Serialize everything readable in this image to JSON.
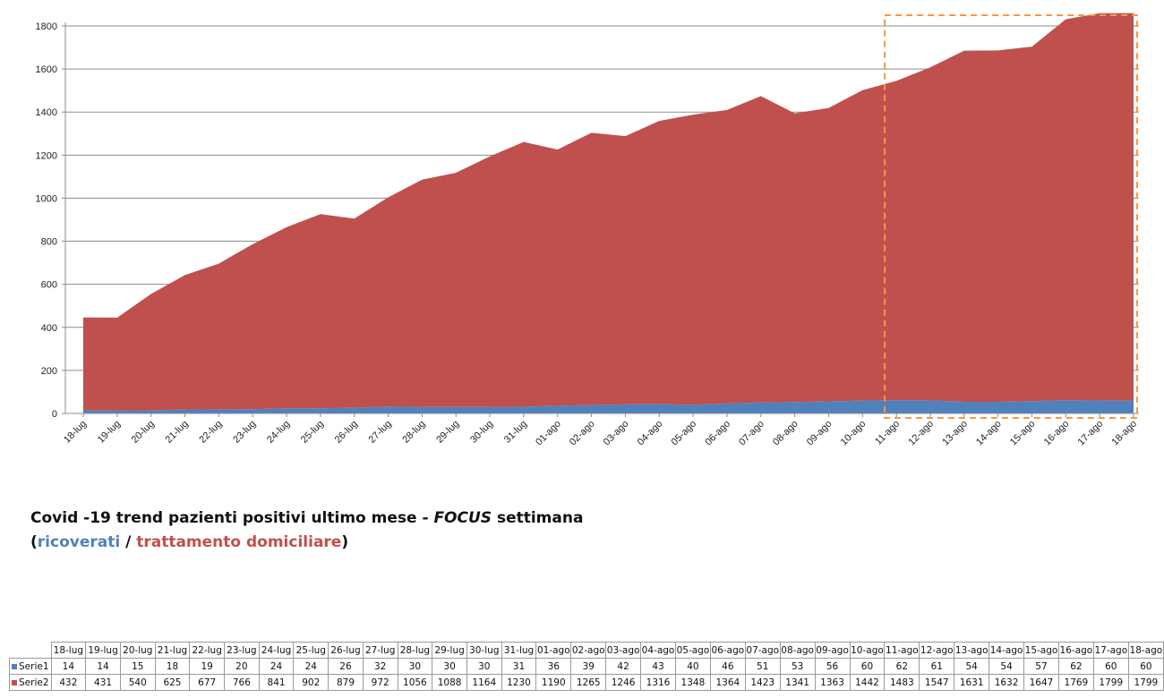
{
  "chart_data": {
    "type": "area",
    "stacked": true,
    "categories": [
      "18-lug",
      "19-lug",
      "20-lug",
      "21-lug",
      "22-lug",
      "23-lug",
      "24-lug",
      "25-lug",
      "26-lug",
      "27-lug",
      "28-lug",
      "29-lug",
      "30-lug",
      "31-lug",
      "01-ago",
      "02-ago",
      "03-ago",
      "04-ago",
      "05-ago",
      "06-ago",
      "07-ago",
      "08-ago",
      "09-ago",
      "10-ago",
      "11-ago",
      "12-ago",
      "13-ago",
      "14-ago",
      "15-ago",
      "16-ago",
      "17-ago",
      "18-ago"
    ],
    "series": [
      {
        "name": "Serie1",
        "color": "#4f81bd",
        "values": [
          14,
          14,
          15,
          18,
          19,
          20,
          24,
          24,
          26,
          32,
          30,
          30,
          30,
          31,
          36,
          39,
          42,
          43,
          40,
          46,
          51,
          53,
          56,
          60,
          62,
          61,
          54,
          54,
          57,
          62,
          60,
          60
        ]
      },
      {
        "name": "Serie2",
        "color": "#c0504d",
        "values": [
          432,
          431,
          540,
          625,
          677,
          766,
          841,
          902,
          879,
          972,
          1056,
          1088,
          1164,
          1230,
          1190,
          1265,
          1246,
          1316,
          1348,
          1364,
          1423,
          1341,
          1363,
          1442,
          1483,
          1547,
          1631,
          1632,
          1647,
          1769,
          1799,
          1799
        ]
      }
    ],
    "ylim": [
      0,
      1800
    ],
    "yticks": [
      0,
      200,
      400,
      600,
      800,
      1000,
      1200,
      1400,
      1600,
      1800
    ],
    "grid": true,
    "highlight": {
      "from": "11-ago",
      "to": "18-ago",
      "color": "#f79646",
      "style": "dashed"
    },
    "title": "",
    "xlabel": "",
    "ylabel": ""
  },
  "caption": {
    "line1_a": "Covid -19 trend pazienti positivi ultimo mese - ",
    "line1_focus": "FOCUS",
    "line1_b": " settimana",
    "paren_open": "(",
    "series1_label": "ricoverati",
    "separator": " / ",
    "series2_label": "trattamento domiciliare",
    "paren_close": ")"
  },
  "table": {
    "columns": [
      "18-lug",
      "19-lug",
      "20-lug",
      "21-lug",
      "22-lug",
      "23-lug",
      "24-lug",
      "25-lug",
      "26-lug",
      "27-lug",
      "28-lug",
      "29-lug",
      "30-lug",
      "31-lug",
      "01-ago",
      "02-ago",
      "03-ago",
      "04-ago",
      "05-ago",
      "06-ago",
      "07-ago",
      "08-ago",
      "09-ago",
      "10-ago",
      "11-ago",
      "12-ago",
      "13-ago",
      "14-ago",
      "15-ago",
      "16-ago",
      "17-ago",
      "18-ago"
    ],
    "rows": [
      {
        "label": "Serie1",
        "color": "#4f81bd",
        "values": [
          14,
          14,
          15,
          18,
          19,
          20,
          24,
          24,
          26,
          32,
          30,
          30,
          30,
          31,
          36,
          39,
          42,
          43,
          40,
          46,
          51,
          53,
          56,
          60,
          62,
          61,
          54,
          54,
          57,
          62,
          60,
          60
        ]
      },
      {
        "label": "Serie2",
        "color": "#c0504d",
        "values": [
          432,
          431,
          540,
          625,
          677,
          766,
          841,
          902,
          879,
          972,
          1056,
          1088,
          1164,
          1230,
          1190,
          1265,
          1246,
          1316,
          1348,
          1364,
          1423,
          1341,
          1363,
          1442,
          1483,
          1547,
          1631,
          1632,
          1647,
          1769,
          1799,
          1799
        ]
      }
    ]
  }
}
